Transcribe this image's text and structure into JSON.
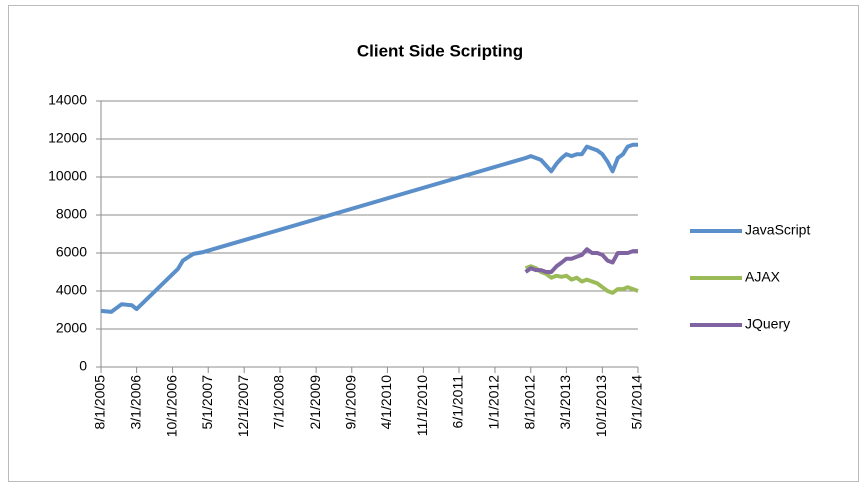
{
  "chart_data": {
    "type": "line",
    "title": "Client Side Scripting",
    "x": [
      "8/1/2005",
      "10/1/2005",
      "12/1/2005",
      "2/1/2006",
      "3/1/2006",
      "11/1/2006",
      "12/1/2006",
      "2/1/2007",
      "4/1/2007",
      "7/1/2012",
      "8/1/2012",
      "9/1/2012",
      "10/1/2012",
      "11/1/2012",
      "12/1/2012",
      "1/1/2013",
      "2/1/2013",
      "3/1/2013",
      "4/1/2013",
      "5/1/2013",
      "6/1/2013",
      "7/1/2013",
      "8/1/2013",
      "9/1/2013",
      "10/1/2013",
      "11/1/2013",
      "12/1/2013",
      "1/1/2014",
      "2/1/2014",
      "3/1/2014",
      "4/1/2014",
      "5/1/2014"
    ],
    "series": [
      {
        "name": "JavaScript",
        "color": "#5b8fc9",
        "values": [
          2950,
          2900,
          3300,
          3250,
          3050,
          5150,
          5600,
          5950,
          6050,
          11000,
          11100,
          11000,
          10900,
          10600,
          10300,
          10700,
          11000,
          11200,
          11100,
          11200,
          11200,
          11600,
          11500,
          11400,
          11200,
          10800,
          10300,
          11000,
          11200,
          11600,
          11700,
          11700
        ]
      },
      {
        "name": "AJAX",
        "color": "#9bbb59",
        "values": [
          null,
          null,
          null,
          null,
          null,
          null,
          null,
          null,
          null,
          5200,
          5300,
          5200,
          5000,
          4900,
          4700,
          4800,
          4750,
          4800,
          4600,
          4700,
          4500,
          4600,
          4500,
          4400,
          4200,
          4000,
          3900,
          4100,
          4100,
          4200,
          4100,
          4000
        ]
      },
      {
        "name": "JQuery",
        "color": "#8064a2",
        "values": [
          null,
          null,
          null,
          null,
          null,
          null,
          null,
          null,
          null,
          5000,
          5200,
          5100,
          5100,
          5000,
          5000,
          5300,
          5500,
          5700,
          5700,
          5800,
          5900,
          6200,
          6000,
          6000,
          5900,
          5600,
          5500,
          6000,
          6000,
          6000,
          6100,
          6100
        ]
      }
    ],
    "xlim": [
      "8/1/2005",
      "5/1/2014"
    ],
    "xticks": [
      "8/1/2005",
      "3/1/2006",
      "10/1/2006",
      "5/1/2007",
      "12/1/2007",
      "7/1/2008",
      "2/1/2009",
      "9/1/2009",
      "4/1/2010",
      "11/1/2010",
      "6/1/2011",
      "1/1/2012",
      "8/1/2012",
      "3/1/2013",
      "10/1/2013",
      "5/1/2014"
    ],
    "ylim": [
      0,
      14000
    ],
    "yticks": [
      0,
      2000,
      4000,
      6000,
      8000,
      10000,
      12000,
      14000
    ],
    "grid": true,
    "legend": "right"
  }
}
